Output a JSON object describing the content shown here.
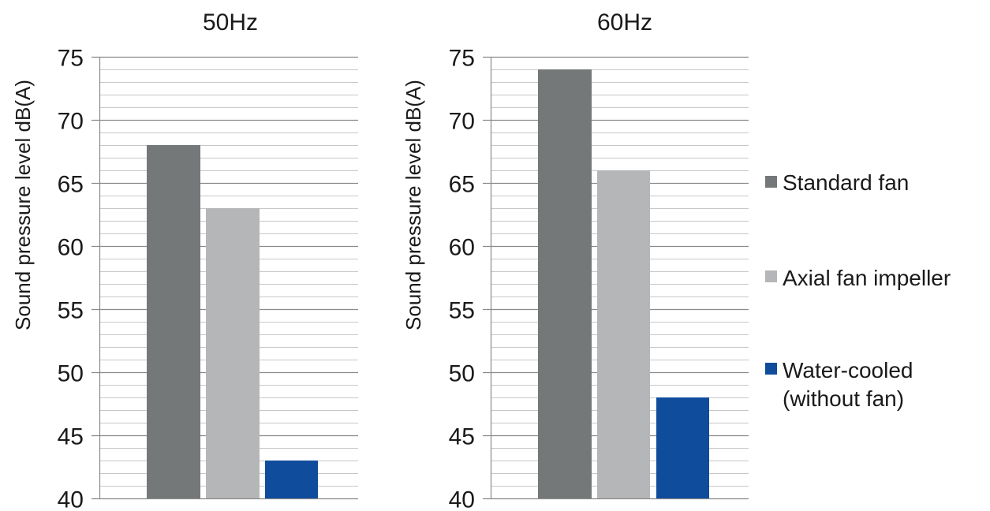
{
  "chart_data": [
    {
      "type": "bar",
      "title": "50Hz",
      "ylabel": "Sound pressure level dB(A)",
      "ylim": [
        40,
        75
      ],
      "yticks": [
        40,
        45,
        50,
        55,
        60,
        65,
        70,
        75
      ],
      "minor_grid_step": 1,
      "grid": true,
      "series": [
        {
          "name": "Standard fan",
          "values": [
            68
          ]
        },
        {
          "name": "Axial fan impeller",
          "values": [
            63
          ]
        },
        {
          "name": "Water-cooled (without fan)",
          "values": [
            43
          ]
        }
      ]
    },
    {
      "type": "bar",
      "title": "60Hz",
      "ylabel": "Sound pressure level dB(A)",
      "ylim": [
        40,
        75
      ],
      "yticks": [
        40,
        45,
        50,
        55,
        60,
        65,
        70,
        75
      ],
      "minor_grid_step": 1,
      "grid": true,
      "series": [
        {
          "name": "Standard fan",
          "values": [
            74
          ]
        },
        {
          "name": "Axial fan impeller",
          "values": [
            66
          ]
        },
        {
          "name": "Water-cooled (without fan)",
          "values": [
            48
          ]
        }
      ]
    }
  ],
  "legend": {
    "placement": "right",
    "items": [
      {
        "lines": [
          "Standard fan"
        ],
        "color": "#757879"
      },
      {
        "lines": [
          "Axial fan impeller"
        ],
        "color": "#b4b6b7"
      },
      {
        "lines": [
          "Water-cooled",
          "(without fan)"
        ],
        "color": "#0f4c9c"
      }
    ]
  },
  "colors": {
    "standard_fan": "#757879",
    "axial_fan": "#b4b6b7",
    "water_cooled": "#0f4c9c",
    "minor_grid": "#c8c8c8",
    "major_grid": "#8a8a8a"
  }
}
